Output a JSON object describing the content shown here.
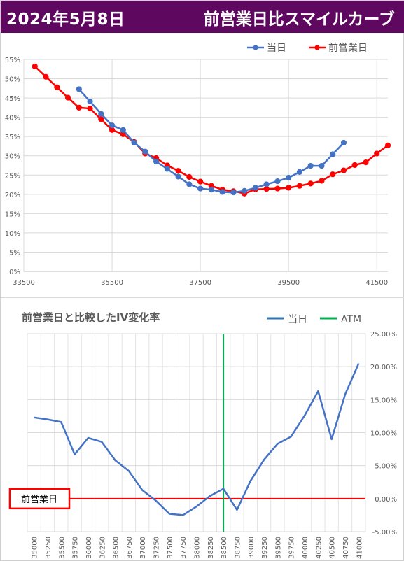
{
  "header": {
    "date": "2024年5月8日",
    "title": "前営業日比スマイルカーブ",
    "background_color": "#5e0860"
  },
  "chart_data": [
    {
      "type": "line",
      "title": "",
      "xlabel": "",
      "ylabel": "",
      "x_ticks": [
        "33500",
        "35500",
        "37500",
        "39500",
        "41500"
      ],
      "y_ticks": [
        "0%",
        "5%",
        "10%",
        "15%",
        "20%",
        "25%",
        "30%",
        "35%",
        "40%",
        "45%",
        "50%",
        "55%"
      ],
      "xlim": [
        33500,
        41750
      ],
      "ylim": [
        0,
        55
      ],
      "grid": true,
      "legend_position": "top-right",
      "series": [
        {
          "name": "当日",
          "color": "#4472c4",
          "points": [
            [
              34750,
              47.3
            ],
            [
              35000,
              44.1
            ],
            [
              35250,
              40.9
            ],
            [
              35500,
              37.9
            ],
            [
              35750,
              36.7
            ],
            [
              36000,
              33.4
            ],
            [
              36250,
              31.1
            ],
            [
              36500,
              28.5
            ],
            [
              36750,
              26.6
            ],
            [
              37000,
              24.6
            ],
            [
              37250,
              22.6
            ],
            [
              37500,
              21.5
            ],
            [
              37750,
              21.2
            ],
            [
              38000,
              20.6
            ],
            [
              38250,
              20.5
            ],
            [
              38500,
              20.9
            ],
            [
              38750,
              21.7
            ],
            [
              39000,
              22.6
            ],
            [
              39250,
              23.4
            ],
            [
              39500,
              24.3
            ],
            [
              39750,
              25.8
            ],
            [
              40000,
              27.4
            ],
            [
              40250,
              27.4
            ],
            [
              40500,
              30.4
            ],
            [
              40750,
              33.4
            ]
          ]
        },
        {
          "name": "前営業日",
          "color": "#ff0000",
          "points": [
            [
              33750,
              53.2
            ],
            [
              34000,
              50.5
            ],
            [
              34250,
              47.8
            ],
            [
              34500,
              45.1
            ],
            [
              34750,
              42.5
            ],
            [
              35000,
              42.3
            ],
            [
              35250,
              39.5
            ],
            [
              35500,
              36.7
            ],
            [
              35750,
              35.6
            ],
            [
              36000,
              33.6
            ],
            [
              36250,
              30.6
            ],
            [
              36500,
              29.4
            ],
            [
              36750,
              27.5
            ],
            [
              37000,
              26.1
            ],
            [
              37250,
              24.5
            ],
            [
              37500,
              23.3
            ],
            [
              37750,
              22.2
            ],
            [
              38000,
              21.2
            ],
            [
              38250,
              20.8
            ],
            [
              38500,
              20.2
            ],
            [
              38750,
              21.3
            ],
            [
              39000,
              21.4
            ],
            [
              39250,
              21.5
            ],
            [
              39500,
              21.7
            ],
            [
              39750,
              22.2
            ],
            [
              40000,
              22.8
            ],
            [
              40250,
              23.5
            ],
            [
              40500,
              25.2
            ],
            [
              40750,
              26.2
            ],
            [
              41000,
              27.6
            ],
            [
              41250,
              28.3
            ],
            [
              41500,
              30.6
            ],
            [
              41750,
              32.7
            ]
          ]
        }
      ]
    },
    {
      "type": "line",
      "title": "前営業日と比較したIV変化率",
      "xlabel": "",
      "ylabel": "",
      "categories": [
        "35000",
        "35250",
        "35500",
        "35750",
        "36000",
        "36250",
        "36500",
        "36750",
        "37000",
        "37250",
        "37500",
        "37750",
        "38000",
        "38250",
        "38500",
        "38750",
        "39000",
        "39250",
        "39500",
        "39750",
        "40000",
        "40250",
        "40500",
        "40750",
        "41000"
      ],
      "y_ticks": [
        "-5.00%",
        "0.00%",
        "5.00%",
        "10.00%",
        "15.00%",
        "20.00%",
        "25.00%"
      ],
      "ylim": [
        -5,
        25
      ],
      "grid": true,
      "legend_position": "top-right",
      "series": [
        {
          "name": "当日",
          "color": "#4472c4",
          "values": [
            12.3,
            12.0,
            11.6,
            6.7,
            9.2,
            8.6,
            5.8,
            4.2,
            1.3,
            -0.3,
            -2.3,
            -2.5,
            -1.2,
            0.4,
            1.5,
            -1.7,
            2.7,
            5.9,
            8.3,
            9.4,
            12.6,
            16.3,
            9.0,
            15.8,
            20.5
          ]
        }
      ],
      "atm": {
        "name": "ATM",
        "category": "38500",
        "color": "#00b050"
      },
      "reference_line": {
        "label": "前営業日",
        "value": 0,
        "color": "#ff0000"
      }
    }
  ]
}
